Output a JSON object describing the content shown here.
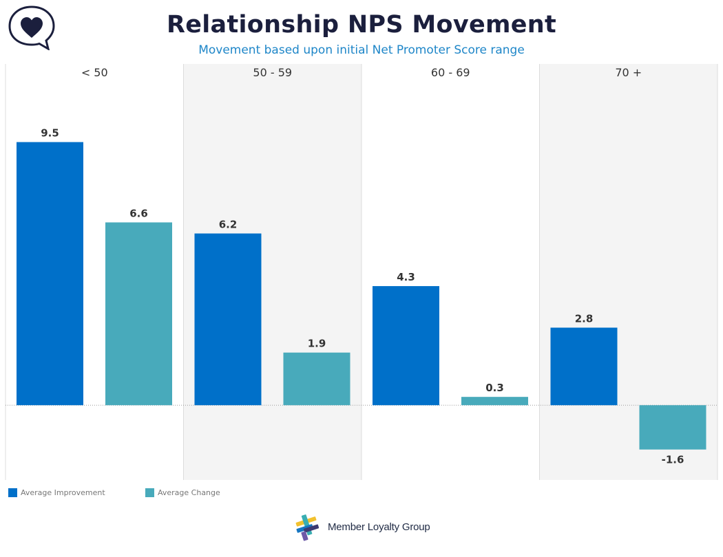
{
  "header": {
    "title": "Relationship NPS Movement",
    "subtitle": "Movement based upon initial Net Promoter Score range",
    "logo_icon": "heart-speech-bubble-icon"
  },
  "legend": {
    "items": [
      {
        "label": "Average Improvement",
        "color": "#0070c9"
      },
      {
        "label": "Average Change",
        "color": "#48aabb"
      }
    ]
  },
  "footer": {
    "brand_name": "Member Loyalty Group",
    "brand_icon": "member-loyalty-group-logo-icon"
  },
  "chart_data": {
    "type": "bar",
    "categories": [
      "< 50",
      "50 - 59",
      "60 - 69",
      "70 +"
    ],
    "series": [
      {
        "name": "Average Improvement",
        "values": [
          9.5,
          6.2,
          4.3,
          2.8
        ],
        "color": "#0070c9"
      },
      {
        "name": "Average Change",
        "values": [
          6.6,
          1.9,
          0.3,
          -1.6
        ],
        "color": "#48aabb"
      }
    ],
    "value_labels": [
      [
        "9.5",
        "6.2",
        "4.3",
        "2.8"
      ],
      [
        "6.6",
        "1.9",
        "0.3",
        "-1.6"
      ]
    ],
    "ylim": [
      -2.7,
      11.7
    ],
    "panel_shading": [
      "#ffffff",
      "#f4f4f4"
    ],
    "zero_line": "dotted",
    "grid": false,
    "legend_position": "bottom-left"
  }
}
